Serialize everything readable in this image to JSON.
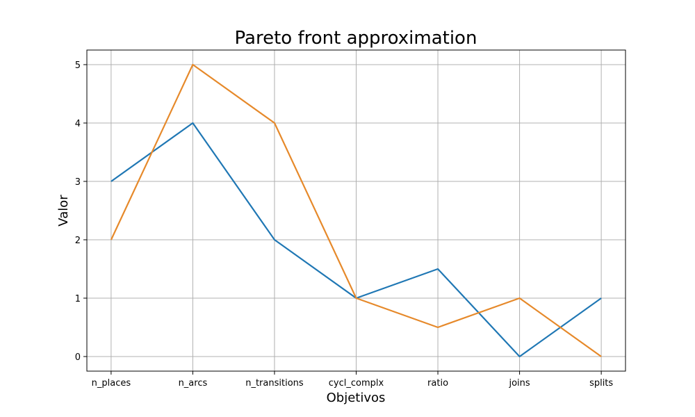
{
  "chart_data": {
    "type": "line",
    "title": "Pareto front approximation",
    "xlabel": "Objetivos",
    "ylabel": "Valor",
    "categories": [
      "n_places",
      "n_arcs",
      "n_transitions",
      "cycl_complx",
      "ratio",
      "joins",
      "splits"
    ],
    "yticks": [
      0,
      1,
      2,
      3,
      4,
      5
    ],
    "ylim": [
      -0.25,
      5.25
    ],
    "grid": true,
    "series": [
      {
        "color": "#1f77b4",
        "values": [
          3,
          4,
          2,
          1,
          1.5,
          0,
          1
        ]
      },
      {
        "color": "#e6892a",
        "values": [
          2,
          5,
          4,
          1,
          0.5,
          1,
          0
        ]
      }
    ]
  }
}
